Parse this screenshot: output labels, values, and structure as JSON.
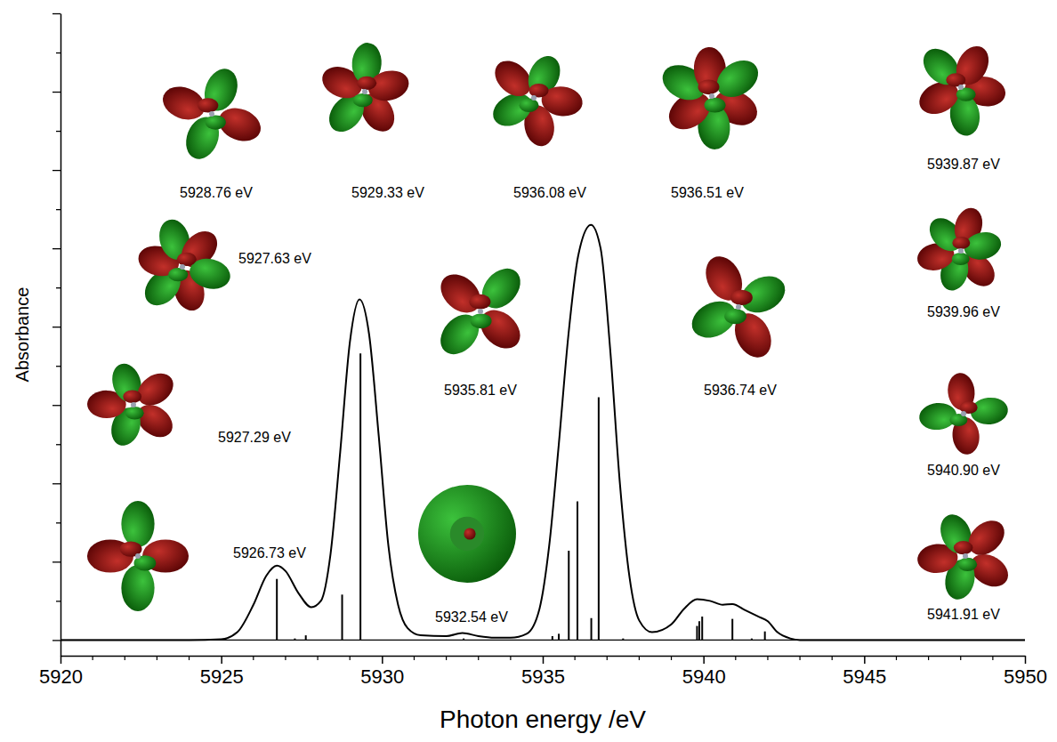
{
  "chart_data": {
    "type": "line",
    "x_label": "Photon energy /eV",
    "y_label": "Absorbance",
    "xlim": [
      5920,
      5950
    ],
    "ylim": [
      -0.2,
      8
    ],
    "xticks": [
      5920,
      5925,
      5930,
      5935,
      5940,
      5945,
      5950
    ],
    "yticks": [
      0,
      0.5,
      1,
      1.5,
      2,
      2.5,
      3,
      3.5,
      4,
      4.5,
      5,
      5.5,
      6,
      6.5,
      7,
      7.5,
      8
    ],
    "tick_labels": "x",
    "grid": false,
    "series": [
      {
        "type": "line",
        "color": "#000000",
        "line_style": "solid",
        "x": [
          5920,
          5924,
          5925,
          5925.5,
          5926,
          5926.4,
          5926.73,
          5927,
          5927.4,
          5927.8,
          5928.1,
          5928.4,
          5928.7,
          5929,
          5929.3,
          5929.6,
          5929.9,
          5930.2,
          5930.5,
          5930.8,
          5931.2,
          5932,
          5932.5,
          5933,
          5933.5,
          5934,
          5934.5,
          5934.9,
          5935.2,
          5935.5,
          5935.8,
          5936.1,
          5936.5,
          5936.8,
          5937.1,
          5937.4,
          5937.7,
          5938,
          5938.4,
          5939,
          5939.4,
          5939.8,
          5940.2,
          5940.6,
          5940.9,
          5941.3,
          5941.7,
          5942,
          5942.3,
          5942.7,
          5943,
          5950
        ],
        "values": [
          0,
          0,
          0.01,
          0.1,
          0.45,
          0.82,
          0.95,
          0.88,
          0.6,
          0.42,
          0.5,
          1.1,
          2.4,
          3.8,
          4.35,
          3.9,
          2.6,
          1.2,
          0.45,
          0.15,
          0.06,
          0.05,
          0.09,
          0.05,
          0.03,
          0.03,
          0.08,
          0.4,
          1.2,
          2.5,
          3.9,
          4.9,
          5.3,
          5.0,
          3.7,
          2.0,
          0.8,
          0.25,
          0.1,
          0.2,
          0.4,
          0.52,
          0.5,
          0.45,
          0.46,
          0.38,
          0.3,
          0.24,
          0.1,
          0.02,
          0,
          0
        ]
      },
      {
        "type": "bar",
        "color": "#000000",
        "x": [
          5926.73,
          5927.29,
          5927.63,
          5928.76,
          5929.33,
          5932.54,
          5935.3,
          5935.5,
          5935.81,
          5936.08,
          5936.51,
          5936.74,
          5937.5,
          5939.8,
          5939.87,
          5939.96,
          5940.9,
          5941.5,
          5941.91
        ],
        "values": [
          0.78,
          0.02,
          0.06,
          0.58,
          3.66,
          0.02,
          0.05,
          0.08,
          1.14,
          1.77,
          0.28,
          3.1,
          0.02,
          0.18,
          0.24,
          0.3,
          0.27,
          0.02,
          0.11
        ]
      }
    ],
    "annotations": [
      "5926.73 eV",
      "5927.29 eV",
      "5927.63 eV",
      "5928.76 eV",
      "5929.33 eV",
      "5932.54 eV",
      "5935.81 eV",
      "5936.08 eV",
      "5936.51 eV",
      "5936.74 eV",
      "5939.87 eV",
      "5939.96 eV",
      "5940.90 eV",
      "5941.91 eV"
    ]
  }
}
